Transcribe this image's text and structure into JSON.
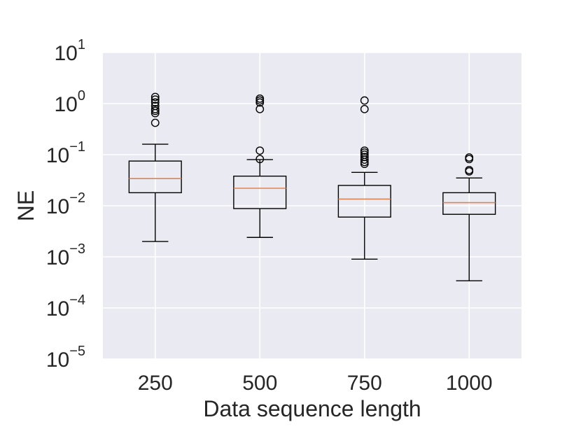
{
  "chart_data": {
    "type": "box",
    "title": "",
    "xlabel": "Data sequence length",
    "ylabel": "NE",
    "y_scale": "log",
    "ylim": [
      1e-05,
      10
    ],
    "y_ticks": [
      {
        "value": 1e-05,
        "base": "10",
        "exp": "−5"
      },
      {
        "value": 0.0001,
        "base": "10",
        "exp": "−4"
      },
      {
        "value": 0.001,
        "base": "10",
        "exp": "−3"
      },
      {
        "value": 0.01,
        "base": "10",
        "exp": "−2"
      },
      {
        "value": 0.1,
        "base": "10",
        "exp": "−1"
      },
      {
        "value": 1,
        "base": "10",
        "exp": "0"
      },
      {
        "value": 10,
        "base": "10",
        "exp": "1"
      }
    ],
    "grid": true,
    "background_color": "#eaeaf2",
    "median_color": "#dd8452",
    "categories": [
      "250",
      "500",
      "750",
      "1000"
    ],
    "boxes": [
      {
        "category": "250",
        "whisker_low": 0.002,
        "q1": 0.018,
        "median": 0.034,
        "q3": 0.075,
        "whisker_high": 0.16,
        "outliers": [
          0.42,
          0.65,
          0.72,
          0.78,
          0.9,
          1.05,
          1.2,
          1.35
        ]
      },
      {
        "category": "500",
        "whisker_low": 0.0024,
        "q1": 0.0088,
        "median": 0.022,
        "q3": 0.038,
        "whisker_high": 0.08,
        "outliers": [
          0.082,
          0.12,
          0.78,
          1.05,
          1.15,
          1.25
        ]
      },
      {
        "category": "750",
        "whisker_low": 0.0009,
        "q1": 0.006,
        "median": 0.0135,
        "q3": 0.025,
        "whisker_high": 0.045,
        "outliers": [
          0.066,
          0.072,
          0.08,
          0.09,
          0.1,
          0.11,
          0.12,
          0.78,
          1.15
        ]
      },
      {
        "category": "1000",
        "whisker_low": 0.00034,
        "q1": 0.0068,
        "median": 0.0115,
        "q3": 0.018,
        "whisker_high": 0.035,
        "outliers": [
          0.047,
          0.05,
          0.082,
          0.088
        ]
      }
    ]
  }
}
